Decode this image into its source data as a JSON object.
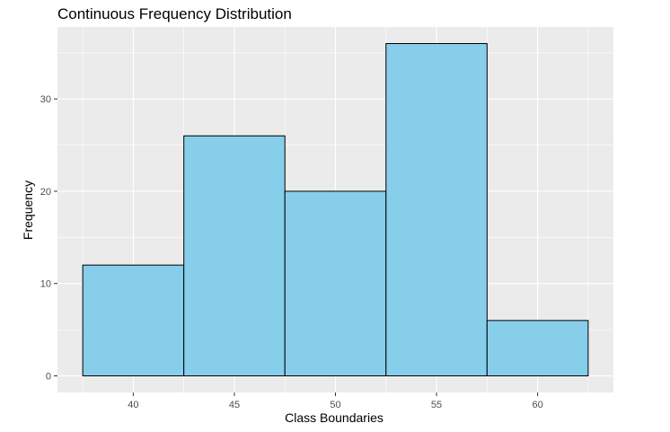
{
  "chart_data": {
    "type": "bar",
    "title": "Continuous Frequency Distribution",
    "xlabel": "Class Boundaries",
    "ylabel": "Frequency",
    "bins": [
      {
        "from": 37.5,
        "to": 42.5,
        "value": 12
      },
      {
        "from": 42.5,
        "to": 47.5,
        "value": 26
      },
      {
        "from": 47.5,
        "to": 52.5,
        "value": 20
      },
      {
        "from": 52.5,
        "to": 57.5,
        "value": 36
      },
      {
        "from": 57.5,
        "to": 62.5,
        "value": 6
      }
    ],
    "xlim": [
      36.25,
      63.75
    ],
    "ylim": [
      -1.8,
      37.8
    ],
    "x_ticks": [
      40,
      45,
      50,
      55,
      60
    ],
    "x_minor_ticks": [
      37.5,
      42.5,
      47.5,
      52.5,
      57.5,
      62.5
    ],
    "y_ticks": [
      0,
      10,
      20,
      30
    ],
    "y_minor_ticks": [
      5,
      15,
      25,
      35
    ],
    "grid": true,
    "bar_fill": "#87CEEB",
    "bar_stroke": "#000000",
    "panel_background": "#EBEBEB",
    "grid_color": "#FFFFFF"
  }
}
